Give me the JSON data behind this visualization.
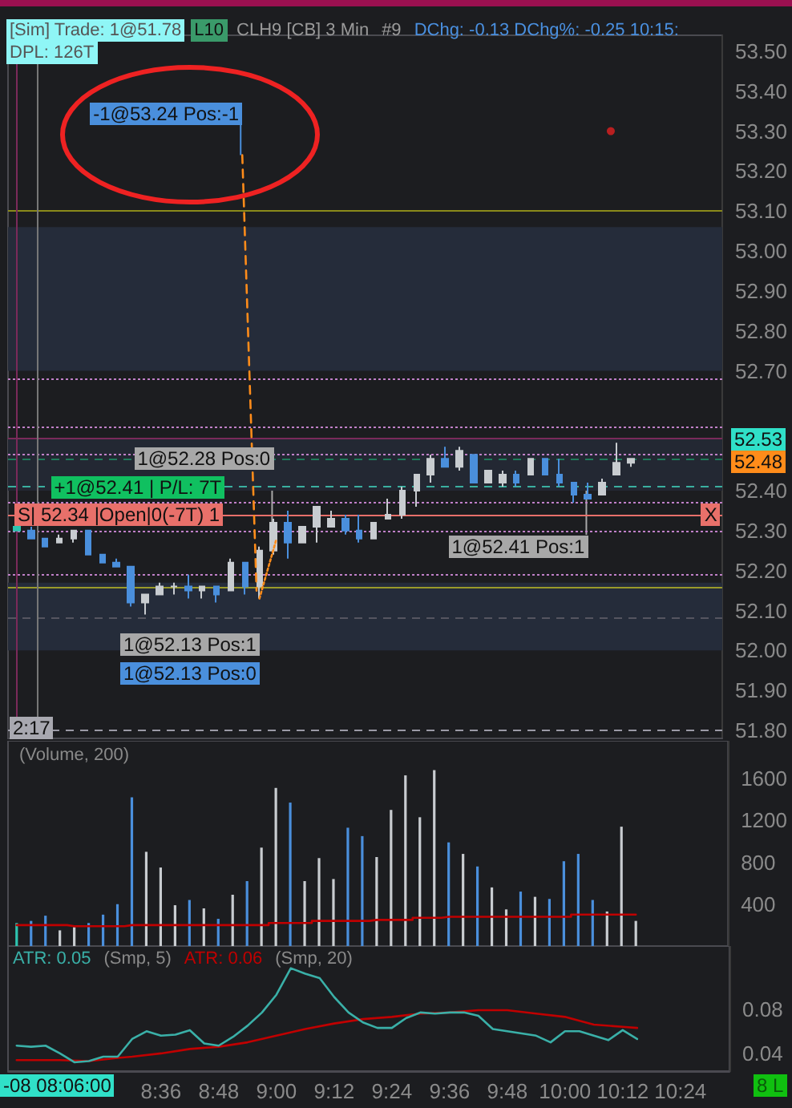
{
  "chart_data": [
    {
      "type": "candlestick",
      "tick_labels": "y",
      "xlim": [
        8.07,
        10.57
      ],
      "ylim": [
        51.78,
        53.54
      ],
      "yticks": [
        {
          "value": 51.8,
          "label": "51.80"
        },
        {
          "value": 51.9,
          "label": "51.90"
        },
        {
          "value": 52,
          "label": "52.00"
        },
        {
          "value": 52.1,
          "label": "52.10"
        },
        {
          "value": 52.2,
          "label": "52.20"
        },
        {
          "value": 52.3,
          "label": "52.30"
        },
        {
          "value": 52.4,
          "label": "52.40"
        },
        {
          "value": 52.7,
          "label": "52.70"
        },
        {
          "value": 52.8,
          "label": "52.80"
        },
        {
          "value": 52.9,
          "label": "52.90"
        },
        {
          "value": 53,
          "label": "53.00"
        },
        {
          "value": 53.1,
          "label": "53.10"
        },
        {
          "value": 53.2,
          "label": "53.20"
        },
        {
          "value": 53.3,
          "label": "53.30"
        },
        {
          "value": 53.4,
          "label": "53.40"
        },
        {
          "value": 53.5,
          "label": "53.50"
        }
      ],
      "series": [
        {
          "x": [
            8.1,
            8.15,
            8.2,
            8.25,
            8.3,
            8.35,
            8.4,
            8.45,
            8.5,
            8.55,
            8.6,
            8.65,
            8.7,
            8.75,
            8.8,
            8.85,
            8.9,
            8.95,
            9,
            9.05,
            9.1,
            9.15,
            9.2,
            9.25,
            9.3,
            9.35,
            9.4,
            9.45,
            9.5,
            9.55,
            9.6,
            9.65,
            9.7,
            9.75,
            9.8,
            9.85,
            9.9,
            9.95,
            10,
            10.05,
            10.1,
            10.15,
            10.2,
            10.25
          ],
          "ohlc": [
            [
              52.31,
              52.32,
              52.3,
              52.3
            ],
            [
              52.3,
              52.31,
              52.28,
              52.28
            ],
            [
              52.28,
              52.28,
              52.26,
              52.26
            ],
            [
              52.27,
              52.29,
              52.27,
              52.28
            ],
            [
              52.28,
              52.3,
              52.27,
              52.3
            ],
            [
              52.3,
              52.3,
              52.24,
              52.24
            ],
            [
              52.24,
              52.24,
              52.22,
              52.22
            ],
            [
              52.22,
              52.23,
              52.21,
              52.21
            ],
            [
              52.21,
              52.21,
              52.11,
              52.12
            ],
            [
              52.12,
              52.14,
              52.09,
              52.14
            ],
            [
              52.14,
              52.17,
              52.14,
              52.16
            ],
            [
              52.16,
              52.17,
              52.14,
              52.16
            ],
            [
              52.16,
              52.19,
              52.13,
              52.15
            ],
            [
              52.15,
              52.16,
              52.13,
              52.16
            ],
            [
              52.16,
              52.16,
              52.12,
              52.14
            ],
            [
              52.15,
              52.23,
              52.15,
              52.22
            ],
            [
              52.22,
              52.22,
              52.14,
              52.16
            ],
            [
              52.16,
              52.26,
              52.13,
              52.25
            ],
            [
              52.25,
              52.33,
              52.24,
              52.32
            ],
            [
              52.32,
              52.35,
              52.23,
              52.27
            ],
            [
              52.27,
              52.31,
              52.27,
              52.31
            ],
            [
              52.31,
              52.36,
              52.27,
              52.36
            ],
            [
              52.31,
              52.35,
              52.31,
              52.33
            ],
            [
              52.33,
              52.34,
              52.29,
              52.3
            ],
            [
              52.3,
              52.34,
              52.27,
              52.28
            ],
            [
              52.28,
              52.32,
              52.28,
              52.32
            ],
            [
              52.33,
              52.38,
              52.33,
              52.34
            ],
            [
              52.34,
              52.41,
              52.33,
              52.4
            ],
            [
              52.4,
              52.44,
              52.36,
              52.44
            ],
            [
              52.44,
              52.49,
              52.42,
              52.48
            ],
            [
              52.48,
              52.51,
              52.46,
              52.46
            ],
            [
              52.46,
              52.51,
              52.45,
              52.5
            ],
            [
              52.49,
              52.49,
              52.42,
              52.42
            ],
            [
              52.42,
              52.45,
              52.42,
              52.45
            ],
            [
              52.42,
              52.45,
              52.41,
              52.44
            ],
            [
              52.44,
              52.45,
              52.41,
              52.42
            ],
            [
              52.44,
              52.48,
              52.44,
              52.48
            ],
            [
              52.48,
              52.48,
              52.44,
              52.44
            ],
            [
              52.44,
              52.48,
              52.41,
              52.42
            ],
            [
              52.42,
              52.42,
              52.37,
              52.39
            ],
            [
              52.39,
              52.42,
              52.38,
              52.38
            ],
            [
              52.39,
              52.43,
              52.39,
              52.42
            ],
            [
              52.44,
              52.52,
              52.44,
              52.47
            ],
            [
              52.47,
              52.48,
              52.46,
              52.48
            ]
          ],
          "colors": [
            "#2ec4b0",
            "#4a8fdc",
            "#4a8fdc",
            "#c8ccd0",
            "#c8ccd0",
            "#4a8fdc",
            "#4a8fdc",
            "#4a8fdc",
            "#4a8fdc",
            "#c8ccd0",
            "#c8ccd0",
            "#c8ccd0",
            "#4a8fdc",
            "#c8ccd0",
            "#4a8fdc",
            "#c8ccd0",
            "#4a8fdc",
            "#c8ccd0",
            "#c8ccd0",
            "#4a8fdc",
            "#c8ccd0",
            "#c8ccd0",
            "#c8ccd0",
            "#4a8fdc",
            "#4a8fdc",
            "#c8ccd0",
            "#c8ccd0",
            "#c8ccd0",
            "#c8ccd0",
            "#c8ccd0",
            "#4a8fdc",
            "#c8ccd0",
            "#4a8fdc",
            "#c8ccd0",
            "#c8ccd0",
            "#4a8fdc",
            "#c8ccd0",
            "#4a8fdc",
            "#4a8fdc",
            "#4a8fdc",
            "#4a8fdc",
            "#c8ccd0",
            "#c8ccd0",
            "#c8ccd0"
          ]
        },
        {
          "type": "scatter",
          "x": [
            10.18
          ],
          "values": [
            53.3
          ],
          "color": "#e02020",
          "marker": "circle"
        },
        {
          "type": "line",
          "x": [
            8.89,
            8.94
          ],
          "values": [
            53.24,
            52.15
          ],
          "color": "#ff8c1a",
          "line_style": "dashed",
          "marker": "none"
        },
        {
          "type": "line",
          "x": [
            8.95,
            9.01
          ],
          "values": [
            52.13,
            52.28
          ],
          "color": "#ff8c1a",
          "line_style": "dotted",
          "marker": "none"
        }
      ],
      "bands": [
        {
          "axis": "y",
          "from": 52.7,
          "to": 53.06,
          "color": "#252c3a"
        },
        {
          "axis": "y",
          "from": 52.0,
          "to": 52.17,
          "color": "#252c3a"
        },
        {
          "axis": "y",
          "from": 52.4,
          "to": 52.53,
          "color": "#232833"
        }
      ],
      "ref_lines": [
        {
          "axis": "y",
          "value": 53.1,
          "color": "#8a8a1a",
          "line_style": "solid"
        },
        {
          "axis": "y",
          "value": 52.16,
          "color": "#9a9a2a",
          "line_style": "solid"
        },
        {
          "axis": "y",
          "value": 52.68,
          "color": "#c080c8",
          "line_style": "dotted"
        },
        {
          "axis": "y",
          "value": 52.56,
          "color": "#c080c8",
          "line_style": "dotted"
        },
        {
          "axis": "y",
          "value": 52.53,
          "color": "#7a2a5a",
          "line_style": "solid"
        },
        {
          "axis": "y",
          "value": 52.49,
          "color": "#c080c8",
          "line_style": "dotted"
        },
        {
          "axis": "y",
          "value": 52.48,
          "color": "#1f7a5a",
          "line_style": "dashed"
        },
        {
          "axis": "y",
          "value": 52.41,
          "color": "#3ab0a0",
          "line_style": "dashed"
        },
        {
          "axis": "y",
          "value": 52.37,
          "color": "#c080c8",
          "line_style": "dotted"
        },
        {
          "axis": "y",
          "value": 52.34,
          "color": "#e8706a",
          "line_style": "solid",
          "label": "S| 52.34 |Open|0(-7T) 1"
        },
        {
          "axis": "y",
          "value": 52.3,
          "color": "#c080c8",
          "line_style": "dotted"
        },
        {
          "axis": "y",
          "value": 52.19,
          "color": "#c080c8",
          "line_style": "dotted"
        },
        {
          "axis": "y",
          "value": 52.08,
          "color": "#555560",
          "line_style": "dashed"
        },
        {
          "axis": "y",
          "value": 51.8,
          "color": "#9a9aa6",
          "line_style": "dashed"
        },
        {
          "axis": "x",
          "value": 8.1,
          "color": "#7a2a5a",
          "line_style": "solid"
        },
        {
          "axis": "x",
          "value": 8.17,
          "color": "#777777",
          "line_style": "solid"
        }
      ],
      "annotations": [
        "[Sim] Trade: 1@51.78",
        "L10",
        "CLH9 [CB]  3 Min",
        "#9",
        "DChg: -0.13 DChg%: -0.25 10:15:",
        "DPL: 126T",
        {
          "text": "-1@53.24 Pos:-1",
          "x": 8.89,
          "y": 53.24
        },
        {
          "text": "+1@52.41 | P/L: 7T",
          "x": 8.22,
          "y": 52.41
        },
        {
          "text": "1@52.28 Pos:0",
          "x": 9.0,
          "y": 52.28
        },
        "1@52.13 Pos:1",
        "1@52.13 Pos:0",
        {
          "text": "1@52.41 Pos:1",
          "x": 10.1,
          "y": 52.41
        },
        {
          "text": "X",
          "x": 10.53,
          "y": 52.34
        },
        "52.53",
        "52.48",
        "2:17"
      ]
    },
    {
      "type": "bar",
      "tick_labels": "y",
      "xlim": [
        8.07,
        10.57
      ],
      "ylim": [
        0,
        1960
      ],
      "yticks": [
        400,
        800,
        1200,
        1600
      ],
      "annotations": [
        "(Volume, 200)"
      ],
      "x": [
        8.1,
        8.15,
        8.2,
        8.25,
        8.3,
        8.35,
        8.4,
        8.45,
        8.5,
        8.55,
        8.6,
        8.65,
        8.7,
        8.75,
        8.8,
        8.85,
        8.9,
        8.95,
        9,
        9.05,
        9.1,
        9.15,
        9.2,
        9.25,
        9.3,
        9.35,
        9.4,
        9.45,
        9.5,
        9.55,
        9.6,
        9.65,
        9.7,
        9.75,
        9.8,
        9.85,
        9.9,
        9.95,
        10,
        10.05,
        10.1,
        10.15,
        10.2,
        10.25
      ],
      "series": [
        {
          "values": [
            220,
            240,
            290,
            150,
            180,
            220,
            300,
            400,
            1420,
            900,
            750,
            390,
            440,
            360,
            260,
            490,
            620,
            940,
            1510,
            1370,
            620,
            840,
            640,
            1130,
            1050,
            850,
            1300,
            1630,
            1230,
            1680,
            990,
            880,
            760,
            560,
            350,
            520,
            470,
            450,
            810,
            880,
            440,
            330,
            1140,
            240
          ],
          "colors": [
            "#2ec4b0",
            "#4a8fdc",
            "#4a8fdc",
            "#c8ccd0",
            "#c8ccd0",
            "#4a8fdc",
            "#4a8fdc",
            "#4a8fdc",
            "#4a8fdc",
            "#c8ccd0",
            "#c8ccd0",
            "#c8ccd0",
            "#4a8fdc",
            "#c8ccd0",
            "#4a8fdc",
            "#c8ccd0",
            "#4a8fdc",
            "#c8ccd0",
            "#c8ccd0",
            "#4a8fdc",
            "#c8ccd0",
            "#c8ccd0",
            "#c8ccd0",
            "#4a8fdc",
            "#4a8fdc",
            "#c8ccd0",
            "#c8ccd0",
            "#c8ccd0",
            "#c8ccd0",
            "#c8ccd0",
            "#4a8fdc",
            "#c8ccd0",
            "#4a8fdc",
            "#c8ccd0",
            "#c8ccd0",
            "#4a8fdc",
            "#c8ccd0",
            "#4a8fdc",
            "#4a8fdc",
            "#4a8fdc",
            "#4a8fdc",
            "#c8ccd0",
            "#c8ccd0",
            "#c8ccd0"
          ]
        },
        {
          "type": "step",
          "color": "#c00000",
          "values": [
            200,
            200,
            200,
            200,
            190,
            190,
            190,
            190,
            200,
            200,
            200,
            200,
            200,
            200,
            200,
            200,
            200,
            200,
            220,
            220,
            220,
            240,
            240,
            240,
            240,
            250,
            250,
            250,
            270,
            270,
            280,
            280,
            280,
            280,
            280,
            280,
            280,
            280,
            280,
            300,
            300,
            300,
            300,
            300
          ]
        }
      ]
    },
    {
      "type": "line",
      "marker": "none",
      "xlim": [
        8.07,
        10.57
      ],
      "ylim": [
        0.024,
        0.137
      ],
      "yticks": [
        {
          "value": 0.04,
          "label": "0.04"
        },
        {
          "value": 0.08,
          "label": "0.08"
        }
      ],
      "xticks": [
        {
          "value": 8.6,
          "label": "8:36"
        },
        {
          "value": 8.8,
          "label": "8:48"
        },
        {
          "value": 9,
          "label": "9:00"
        },
        {
          "value": 9.2,
          "label": "9:12"
        },
        {
          "value": 9.4,
          "label": "9:24"
        },
        {
          "value": 9.6,
          "label": "9:36"
        },
        {
          "value": 9.8,
          "label": "9:48"
        },
        {
          "value": 10,
          "label": "10:00"
        },
        {
          "value": 10.2,
          "label": "10:12"
        },
        {
          "value": 10.4,
          "label": "10:24"
        }
      ],
      "annotations": [
        "ATR: 0.05",
        "(Smp, 5)",
        "ATR: 0.06",
        "(Smp, 20)",
        "-08 08:06:00",
        "8 L"
      ],
      "series": [
        {
          "color": "#3ab0a8",
          "x": [
            8.1,
            8.15,
            8.2,
            8.25,
            8.3,
            8.35,
            8.4,
            8.45,
            8.5,
            8.55,
            8.6,
            8.65,
            8.7,
            8.75,
            8.8,
            8.85,
            8.9,
            8.95,
            9,
            9.05,
            9.1,
            9.15,
            9.2,
            9.25,
            9.3,
            9.35,
            9.4,
            9.45,
            9.5,
            9.55,
            9.6,
            9.65,
            9.7,
            9.75,
            9.8,
            9.85,
            9.9,
            9.95,
            10,
            10.05,
            10.1,
            10.15,
            10.2,
            10.25
          ],
          "values": [
            0.047,
            0.046,
            0.047,
            0.04,
            0.032,
            0.033,
            0.037,
            0.037,
            0.053,
            0.06,
            0.056,
            0.057,
            0.061,
            0.049,
            0.047,
            0.055,
            0.065,
            0.077,
            0.093,
            0.117,
            0.112,
            0.108,
            0.091,
            0.077,
            0.068,
            0.063,
            0.063,
            0.072,
            0.077,
            0.076,
            0.077,
            0.077,
            0.074,
            0.062,
            0.06,
            0.058,
            0.056,
            0.05,
            0.06,
            0.06,
            0.056,
            0.052,
            0.061,
            0.053
          ]
        },
        {
          "color": "#c00000",
          "x": [
            8.1,
            8.25,
            8.35,
            8.45,
            8.5,
            8.6,
            8.7,
            8.8,
            8.9,
            9,
            9.1,
            9.2,
            9.3,
            9.4,
            9.5,
            9.6,
            9.7,
            9.8,
            9.9,
            10,
            10.1,
            10.2,
            10.25
          ],
          "values": [
            0.034,
            0.034,
            0.033,
            0.036,
            0.037,
            0.04,
            0.044,
            0.046,
            0.05,
            0.056,
            0.062,
            0.067,
            0.071,
            0.073,
            0.076,
            0.077,
            0.079,
            0.079,
            0.076,
            0.073,
            0.066,
            0.064,
            0.063
          ]
        }
      ]
    }
  ]
}
